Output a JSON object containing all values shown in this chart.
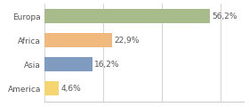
{
  "categories": [
    "Europa",
    "Africa",
    "Asia",
    "America"
  ],
  "values": [
    56.2,
    22.9,
    16.2,
    4.6
  ],
  "labels": [
    "56,2%",
    "22,9%",
    "16,2%",
    "4,6%"
  ],
  "bar_colors": [
    "#a8bb8a",
    "#f0b97e",
    "#7f9bbf",
    "#f5d472"
  ],
  "xlim": [
    0,
    68
  ],
  "background_color": "#ffffff",
  "label_fontsize": 6.5,
  "tick_fontsize": 6.5,
  "bar_height": 0.6
}
